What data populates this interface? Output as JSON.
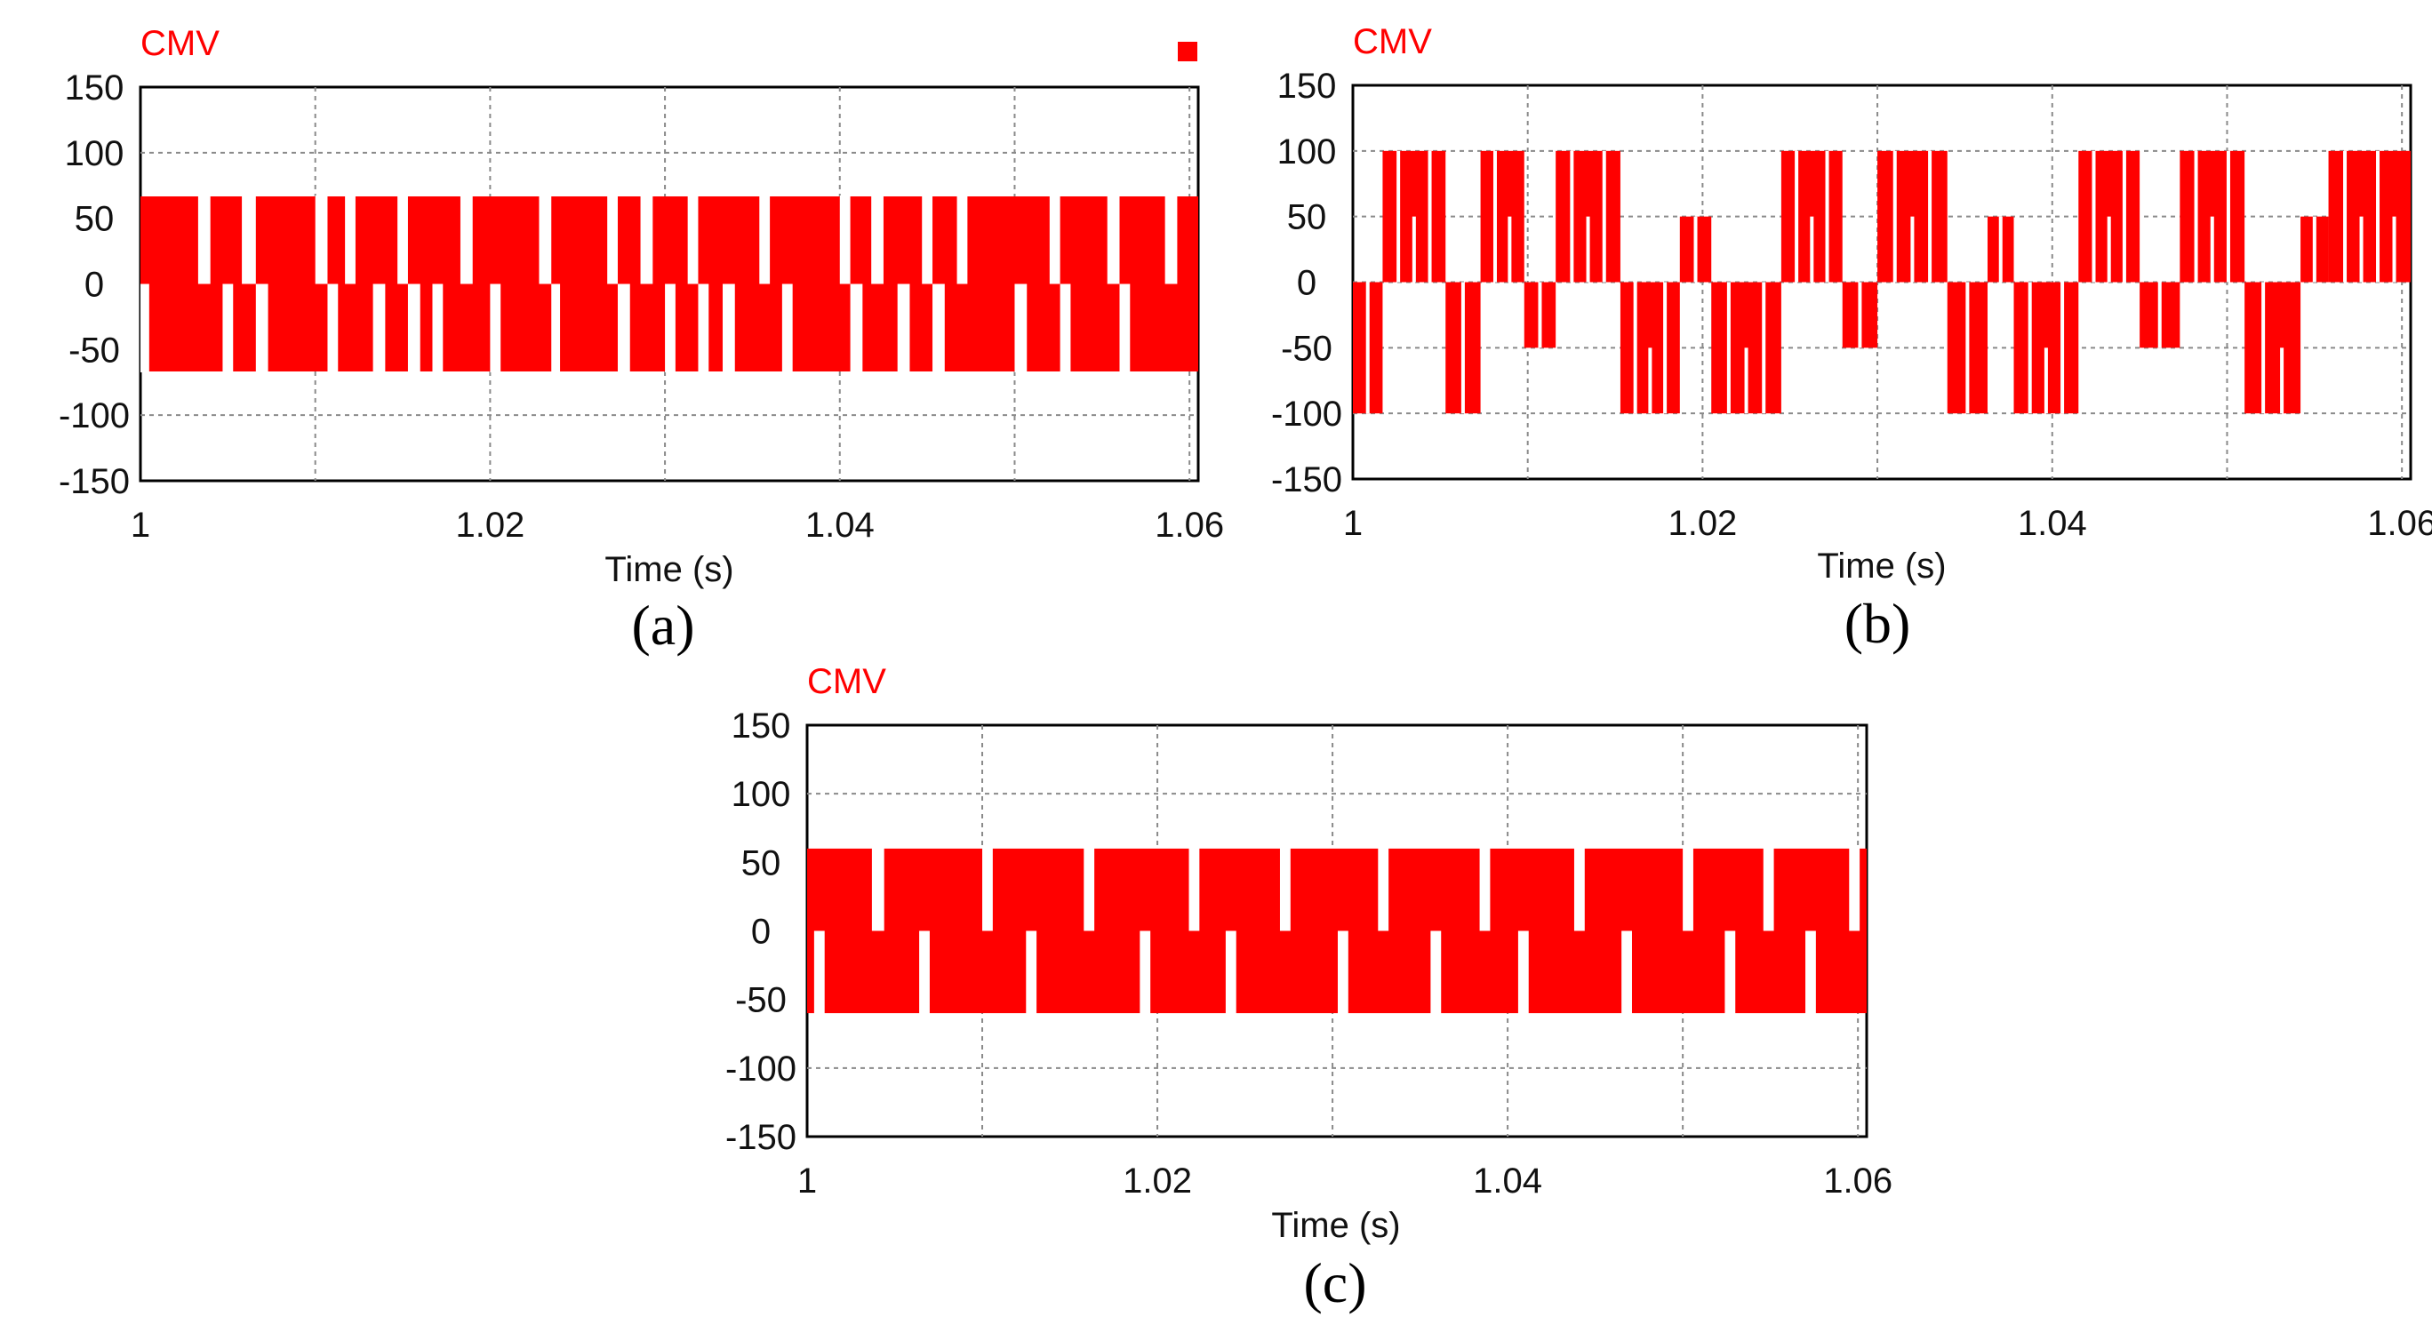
{
  "figure": {
    "captions": [
      "(a)",
      "(b)",
      "(c)"
    ]
  },
  "chart_data": [
    {
      "type": "line",
      "panel": "(a)",
      "title": "CMV",
      "xlabel": "Time (s)",
      "ylabel": "",
      "xlim": [
        1,
        1.0605
      ],
      "ylim": [
        -150,
        150
      ],
      "grid": true,
      "color": "#ff0000",
      "legend_marker": true,
      "x_ticks": [
        "1",
        "1.02",
        "1.04",
        "1.06"
      ],
      "x_tick_values": [
        1,
        1.02,
        1.04,
        1.06
      ],
      "y_ticks": [
        "150",
        "100",
        "50",
        "0",
        "-50",
        "-100",
        "-150"
      ],
      "y_tick_values": [
        150,
        100,
        50,
        0,
        -50,
        -100,
        -150
      ],
      "levels": [
        66.7,
        -66.7
      ],
      "series": [
        {
          "name": "CMV",
          "gap_intervals": [
            [
              1.0,
              1.0005,
              "low"
            ],
            [
              1.0033,
              1.004,
              "high"
            ],
            [
              1.0047,
              1.0053,
              "low"
            ],
            [
              1.0058,
              1.0066,
              "high"
            ],
            [
              1.0066,
              1.0073,
              "low"
            ],
            [
              1.01,
              1.0107,
              "high"
            ],
            [
              1.0107,
              1.0113,
              "low"
            ],
            [
              1.0117,
              1.0123,
              "high"
            ],
            [
              1.0133,
              1.014,
              "low"
            ],
            [
              1.0147,
              1.0153,
              "high"
            ],
            [
              1.0153,
              1.016,
              "low"
            ],
            [
              1.0167,
              1.0173,
              "low"
            ],
            [
              1.0183,
              1.019,
              "high"
            ],
            [
              1.02,
              1.0206,
              "low"
            ],
            [
              1.0228,
              1.0235,
              "high"
            ],
            [
              1.0235,
              1.024,
              "low"
            ],
            [
              1.0267,
              1.0273,
              "high"
            ],
            [
              1.0273,
              1.028,
              "low"
            ],
            [
              1.0286,
              1.0293,
              "high"
            ],
            [
              1.03,
              1.0306,
              "low"
            ],
            [
              1.0313,
              1.0319,
              "high"
            ],
            [
              1.0319,
              1.0325,
              "low"
            ],
            [
              1.0333,
              1.034,
              "low"
            ],
            [
              1.0354,
              1.036,
              "high"
            ],
            [
              1.0367,
              1.0373,
              "low"
            ],
            [
              1.04,
              1.0406,
              "high"
            ],
            [
              1.0406,
              1.0413,
              "low"
            ],
            [
              1.0418,
              1.0425,
              "high"
            ],
            [
              1.0433,
              1.044,
              "low"
            ],
            [
              1.0447,
              1.0453,
              "high"
            ],
            [
              1.0453,
              1.046,
              "low"
            ],
            [
              1.0467,
              1.0473,
              "high"
            ],
            [
              1.05,
              1.0507,
              "low"
            ],
            [
              1.052,
              1.0526,
              "high"
            ],
            [
              1.0526,
              1.0532,
              "low"
            ],
            [
              1.0553,
              1.056,
              "high"
            ],
            [
              1.056,
              1.0566,
              "low"
            ],
            [
              1.0586,
              1.0593,
              "high"
            ]
          ]
        }
      ]
    },
    {
      "type": "line",
      "panel": "(b)",
      "title": "CMV",
      "xlabel": "Time (s)",
      "ylabel": "",
      "xlim": [
        1,
        1.0605
      ],
      "ylim": [
        -150,
        150
      ],
      "grid": true,
      "color": "#ff0000",
      "x_ticks": [
        "1",
        "1.02",
        "1.04",
        "1.06"
      ],
      "x_tick_values": [
        1,
        1.02,
        1.04,
        1.06
      ],
      "y_ticks": [
        "150",
        "100",
        "50",
        "0",
        "-50",
        "-100",
        "-150"
      ],
      "y_tick_values": [
        150,
        100,
        50,
        0,
        -50,
        -100,
        -150
      ],
      "levels": [
        100,
        50,
        0,
        -50,
        -100
      ],
      "series": [
        {
          "name": "CMV",
          "bursts": [
            [
              1.0,
              1.0017,
              "neg"
            ],
            [
              1.0017,
              1.0053,
              "pos"
            ],
            [
              1.0053,
              1.0073,
              "neg"
            ],
            [
              1.0073,
              1.0098,
              "pos"
            ],
            [
              1.0098,
              1.0116,
              "mid_neg"
            ],
            [
              1.0116,
              1.0153,
              "pos"
            ],
            [
              1.0153,
              1.0187,
              "neg"
            ],
            [
              1.0187,
              1.0205,
              "mid_pos"
            ],
            [
              1.0205,
              1.0245,
              "neg"
            ],
            [
              1.0245,
              1.028,
              "pos"
            ],
            [
              1.028,
              1.03,
              "mid_neg"
            ],
            [
              1.03,
              1.034,
              "pos"
            ],
            [
              1.034,
              1.0363,
              "neg"
            ],
            [
              1.0363,
              1.0378,
              "mid_pos"
            ],
            [
              1.0378,
              1.0415,
              "neg"
            ],
            [
              1.0415,
              1.045,
              "pos"
            ],
            [
              1.045,
              1.0473,
              "mid_neg"
            ],
            [
              1.0473,
              1.051,
              "pos"
            ],
            [
              1.051,
              1.0542,
              "neg"
            ],
            [
              1.0542,
              1.0558,
              "mid_pos"
            ],
            [
              1.0558,
              1.0605,
              "pos"
            ]
          ]
        }
      ]
    },
    {
      "type": "line",
      "panel": "(c)",
      "title": "CMV",
      "xlabel": "Time (s)",
      "ylabel": "",
      "xlim": [
        1,
        1.0605
      ],
      "ylim": [
        -150,
        150
      ],
      "grid": true,
      "color": "#ff0000",
      "x_ticks": [
        "1",
        "1.02",
        "1.04",
        "1.06"
      ],
      "x_tick_values": [
        1,
        1.02,
        1.04,
        1.06
      ],
      "y_ticks": [
        "150",
        "100",
        "50",
        "0",
        "-50",
        "-100",
        "-150"
      ],
      "y_tick_values": [
        150,
        100,
        50,
        0,
        -50,
        -100,
        -150
      ],
      "levels": [
        60,
        -60
      ],
      "series": [
        {
          "name": "CMV",
          "gap_intervals": [
            [
              1.0004,
              1.001,
              "low"
            ],
            [
              1.0037,
              1.0044,
              "high"
            ],
            [
              1.0064,
              1.007,
              "low"
            ],
            [
              1.01,
              1.0106,
              "high"
            ],
            [
              1.0125,
              1.0131,
              "low"
            ],
            [
              1.0158,
              1.0164,
              "high"
            ],
            [
              1.019,
              1.0196,
              "low"
            ],
            [
              1.0218,
              1.0224,
              "high"
            ],
            [
              1.0239,
              1.0245,
              "low"
            ],
            [
              1.027,
              1.0276,
              "high"
            ],
            [
              1.0303,
              1.0309,
              "low"
            ],
            [
              1.0326,
              1.0332,
              "high"
            ],
            [
              1.0356,
              1.0362,
              "low"
            ],
            [
              1.0384,
              1.039,
              "high"
            ],
            [
              1.0406,
              1.0412,
              "low"
            ],
            [
              1.0438,
              1.0444,
              "high"
            ],
            [
              1.0465,
              1.0471,
              "low"
            ],
            [
              1.05,
              1.0506,
              "high"
            ],
            [
              1.0524,
              1.053,
              "low"
            ],
            [
              1.0546,
              1.0552,
              "high"
            ],
            [
              1.057,
              1.0576,
              "low"
            ],
            [
              1.0595,
              1.0601,
              "high"
            ]
          ]
        }
      ]
    }
  ]
}
